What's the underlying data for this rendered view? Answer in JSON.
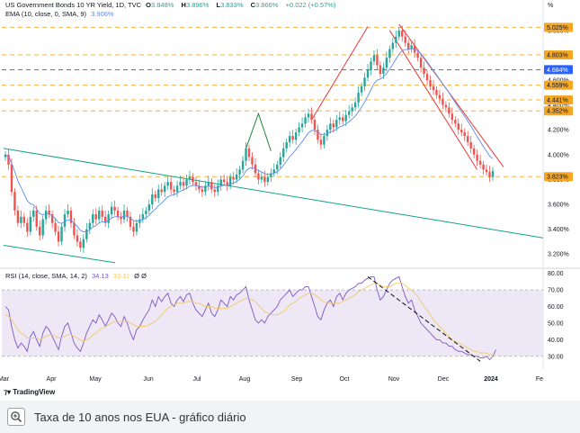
{
  "legend": {
    "instrument": "US Government Bonds 10 YR Yield, 1D, TVC",
    "ohlc": [
      {
        "label": "O",
        "value": "3.848%"
      },
      {
        "label": "H",
        "value": "3.896%"
      },
      {
        "label": "L",
        "value": "3.833%"
      },
      {
        "label": "C",
        "value": "3.866%"
      },
      {
        "label": "",
        "value": "+0.022 (+0.57%)"
      }
    ],
    "ema_label": "EMA (10, close, 0, SMA, 9)",
    "ema_value": "3.906%",
    "rsi_label": "RSI (14, close, SMA, 14, 2)",
    "rsi_value": "34.13",
    "rsi_sma_value": "33.11",
    "rsi_extra": "Ø Ø"
  },
  "unit_label": "%",
  "brand": "TradingView",
  "caption": "Taxa de 10 anos nos EUA - gráfico diário",
  "colors": {
    "up": "#26a69a",
    "down": "#ef5350",
    "ema": "#5b8def",
    "channel": "#e53935",
    "trend": "#11a387",
    "hline_orange": "#f5a623",
    "hline_blue": "#2962ff",
    "rsi_line": "#7e57c2",
    "rsi_sma": "#f3c969",
    "rsi_band": "#ede7f6"
  },
  "chart_data": [
    {
      "type": "candlestick",
      "title": "US Government Bonds 10 YR Yield, 1D, TVC",
      "x": [
        "Mar",
        "Apr",
        "May",
        "Jun",
        "Jul",
        "Aug",
        "Sep",
        "Oct",
        "Nov",
        "Dec",
        "2024",
        "Fe"
      ],
      "ylim": [
        3.1,
        5.1
      ],
      "y_ticks": [
        "3.200%",
        "3.400%",
        "3.600%",
        "3.800%",
        "4.000%",
        "4.200%",
        "4.400%",
        "4.600%",
        "4.800%",
        "5.000%"
      ],
      "price_levels": [
        {
          "value": 5.025,
          "label": "5.025%",
          "style": "orange"
        },
        {
          "value": 4.803,
          "label": "4.803%",
          "style": "orange"
        },
        {
          "value": 4.684,
          "label": "4.684%",
          "style": "blue"
        },
        {
          "value": 4.559,
          "label": "4.559%",
          "style": "orange"
        },
        {
          "value": 4.441,
          "label": "4.441%",
          "style": "orange"
        },
        {
          "value": 4.352,
          "label": "4.352%",
          "style": "orange"
        },
        {
          "value": 3.823,
          "label": "3.823%",
          "style": "orange"
        }
      ],
      "closes": [
        4.0,
        3.92,
        3.7,
        3.55,
        3.45,
        3.5,
        3.45,
        3.38,
        3.5,
        3.55,
        3.42,
        3.35,
        3.48,
        3.55,
        3.52,
        3.45,
        3.38,
        3.3,
        3.42,
        3.52,
        3.55,
        3.45,
        3.35,
        3.3,
        3.25,
        3.32,
        3.4,
        3.45,
        3.52,
        3.48,
        3.55,
        3.5,
        3.45,
        3.52,
        3.58,
        3.55,
        3.5,
        3.48,
        3.55,
        3.5,
        3.42,
        3.38,
        3.45,
        3.48,
        3.52,
        3.55,
        3.6,
        3.68,
        3.65,
        3.72,
        3.7,
        3.75,
        3.78,
        3.72,
        3.7,
        3.75,
        3.78,
        3.75,
        3.8,
        3.82,
        3.78,
        3.75,
        3.72,
        3.7,
        3.75,
        3.78,
        3.72,
        3.7,
        3.75,
        3.8,
        3.78,
        3.75,
        3.82,
        3.8,
        3.84,
        3.88,
        3.95,
        4.05,
        3.98,
        3.92,
        3.85,
        3.8,
        3.82,
        3.78,
        3.82,
        3.85,
        3.88,
        3.92,
        3.98,
        4.05,
        4.1,
        4.15,
        4.12,
        4.18,
        4.22,
        4.25,
        4.3,
        4.33,
        4.28,
        4.2,
        4.12,
        4.08,
        4.15,
        4.2,
        4.25,
        4.22,
        4.28,
        4.3,
        4.27,
        4.32,
        4.35,
        4.38,
        4.42,
        4.5,
        4.55,
        4.62,
        4.68,
        4.75,
        4.8,
        4.72,
        4.65,
        4.7,
        4.78,
        4.85,
        4.9,
        4.95,
        5.0,
        4.95,
        4.9,
        4.85,
        4.88,
        4.82,
        4.78,
        4.7,
        4.65,
        4.6,
        4.55,
        4.52,
        4.48,
        4.45,
        4.4,
        4.38,
        4.33,
        4.28,
        4.25,
        4.2,
        4.18,
        4.15,
        4.1,
        4.05,
        4.0,
        3.95,
        3.92,
        3.88,
        3.86,
        3.82,
        3.87
      ],
      "ema_note": "EMA follows closes",
      "rsi": {
        "ylim": [
          25,
          82
        ],
        "y_ticks": [
          "30.00",
          "40.00",
          "50.00",
          "60.00",
          "70.00",
          "80.00"
        ],
        "band": [
          30,
          70
        ],
        "values": [
          60,
          58,
          48,
          40,
          35,
          38,
          36,
          33,
          42,
          45,
          40,
          36,
          44,
          48,
          46,
          42,
          38,
          34,
          42,
          48,
          50,
          44,
          38,
          35,
          33,
          38,
          44,
          48,
          52,
          50,
          55,
          52,
          48,
          52,
          56,
          54,
          50,
          48,
          54,
          50,
          44,
          40,
          46,
          48,
          52,
          55,
          58,
          64,
          60,
          66,
          63,
          66,
          68,
          62,
          60,
          64,
          66,
          63,
          67,
          68,
          62,
          58,
          56,
          54,
          58,
          62,
          56,
          54,
          58,
          64,
          62,
          60,
          66,
          64,
          67,
          68,
          70,
          72,
          64,
          58,
          52,
          50,
          52,
          50,
          54,
          56,
          58,
          60,
          64,
          66,
          68,
          70,
          66,
          68,
          70,
          70,
          72,
          72,
          66,
          60,
          54,
          52,
          58,
          62,
          64,
          60,
          66,
          68,
          64,
          68,
          70,
          71,
          72,
          74,
          74,
          76,
          77,
          78,
          78,
          70,
          64,
          66,
          70,
          74,
          76,
          77,
          78,
          72,
          66,
          62,
          64,
          58,
          54,
          50,
          48,
          46,
          44,
          42,
          40,
          40,
          38,
          38,
          36,
          36,
          34,
          33,
          33,
          32,
          31,
          31,
          30,
          30,
          29,
          29,
          30,
          28,
          30,
          34
        ],
        "sma_values": [
          55,
          54,
          52,
          49,
          46,
          44,
          43,
          41,
          41,
          41,
          41,
          40,
          41,
          42,
          43,
          43,
          42,
          41,
          41,
          42,
          43,
          43,
          42,
          41,
          40,
          39,
          40,
          41,
          43,
          44,
          46,
          47,
          48,
          49,
          50,
          51,
          51,
          51,
          51,
          51,
          50,
          49,
          48,
          48,
          48,
          48,
          49,
          50,
          51,
          53,
          55,
          57,
          59,
          60,
          61,
          62,
          62,
          62,
          63,
          63,
          63,
          62,
          62,
          61,
          60,
          60,
          60,
          59,
          59,
          59,
          59,
          59,
          60,
          61,
          62,
          63,
          64,
          65,
          65,
          64,
          63,
          61,
          59,
          57,
          56,
          55,
          55,
          55,
          56,
          57,
          59,
          61,
          62,
          63,
          65,
          66,
          67,
          68,
          68,
          67,
          66,
          64,
          63,
          62,
          62,
          62,
          62,
          62,
          63,
          64,
          65,
          66,
          67,
          69,
          70,
          71,
          72,
          73,
          74,
          74,
          73,
          72,
          72,
          72,
          73,
          74,
          74,
          74,
          73,
          71,
          70,
          68,
          66,
          63,
          60,
          58,
          55,
          52,
          50,
          48,
          46,
          44,
          42,
          40,
          39,
          38,
          37,
          36,
          35,
          34,
          33,
          33,
          32,
          32,
          32,
          31,
          31,
          31
        ]
      }
    }
  ]
}
